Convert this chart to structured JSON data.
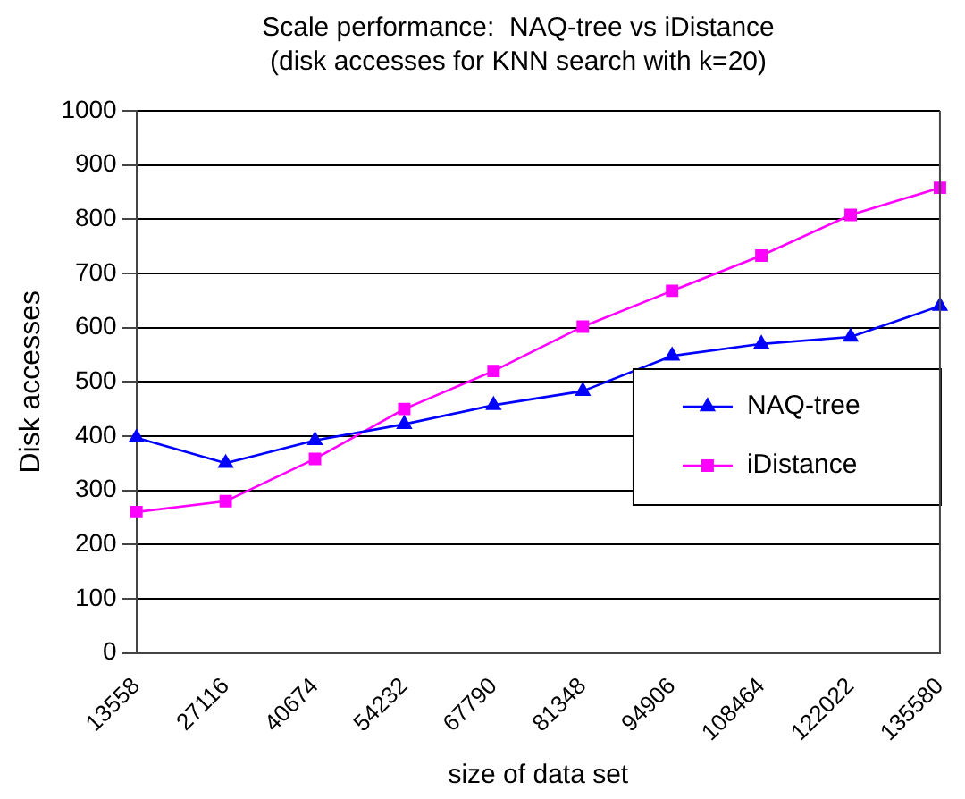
{
  "chart_data": {
    "type": "line",
    "title": "Scale performance:  NAQ-tree vs iDistance\n(disk accesses for KNN search with k=20)",
    "xlabel": "size of data set",
    "ylabel": "Disk accesses",
    "categories": [
      "13558",
      "27116",
      "40674",
      "54232",
      "67790",
      "81348",
      "94906",
      "108464",
      "122022",
      "135580"
    ],
    "series": [
      {
        "name": "NAQ-tree",
        "color": "#0000ff",
        "marker": "triangle",
        "values": [
          397,
          350,
          392,
          422,
          457,
          483,
          548,
          570,
          583,
          640
        ]
      },
      {
        "name": "iDistance",
        "color": "#ff00ff",
        "marker": "square",
        "values": [
          260,
          280,
          358,
          450,
          520,
          602,
          668,
          733,
          808,
          858
        ]
      }
    ],
    "ylim": [
      0,
      1000
    ],
    "yticks": [
      0,
      100,
      200,
      300,
      400,
      500,
      600,
      700,
      800,
      900,
      1000
    ],
    "grid": "y",
    "legend": "right"
  }
}
